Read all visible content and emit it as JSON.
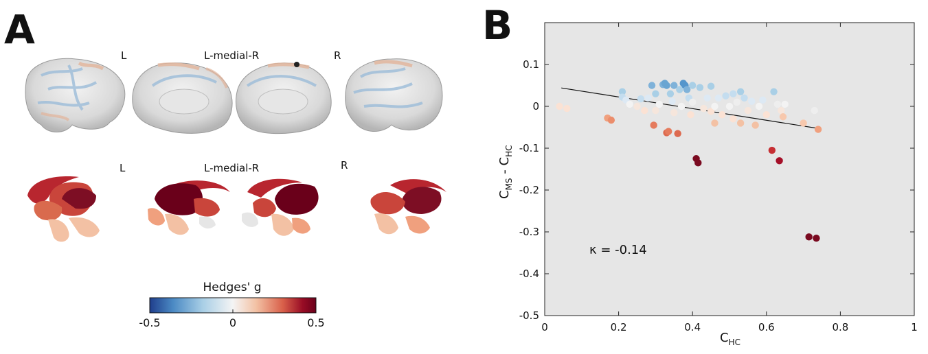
{
  "panel_a": {
    "letter": "A",
    "cortex_labels": [
      "L",
      "L-medial-R",
      "R"
    ],
    "subcortex_labels": [
      "L",
      "L-medial-R",
      "R"
    ],
    "colorbar": {
      "title": "Hedges' g",
      "ticks": [
        "-0.5",
        "0",
        "0.5"
      ],
      "min": -0.5,
      "max": 0.5,
      "colors": [
        "#1f3e8c",
        "#4b8ac4",
        "#a9cfe6",
        "#f4f4f4",
        "#f3c1a4",
        "#d9604a",
        "#980c25",
        "#6a001a"
      ]
    }
  },
  "panel_b": {
    "letter": "B"
  },
  "chart_data": {
    "type": "scatter",
    "xlabel": "C_HC",
    "ylabel": "C_MS - C_HC",
    "xlim": [
      0,
      1
    ],
    "ylim": [
      -0.5,
      0.2
    ],
    "xticks": [
      "0",
      "0.2",
      "0.4",
      "0.6",
      "0.8",
      "1"
    ],
    "yticks": [
      "0.1",
      "0",
      "-0.1",
      "-0.2",
      "-0.3",
      "-0.4",
      "-0.5"
    ],
    "background": "#e6e6e6",
    "grid": false,
    "annotation": "κ = -0.14",
    "fit_line": {
      "x": [
        0.045,
        0.735
      ],
      "y": [
        0.044,
        -0.052
      ]
    },
    "points": [
      {
        "x": 0.04,
        "y": 0.0,
        "color": "#fbe2d4"
      },
      {
        "x": 0.06,
        "y": -0.005,
        "color": "#fbe2d4"
      },
      {
        "x": 0.17,
        "y": -0.028,
        "color": "#f0a07e"
      },
      {
        "x": 0.18,
        "y": -0.033,
        "color": "#eb8d6c"
      },
      {
        "x": 0.21,
        "y": 0.035,
        "color": "#a9cfe6"
      },
      {
        "x": 0.21,
        "y": 0.022,
        "color": "#c4ddef"
      },
      {
        "x": 0.22,
        "y": 0.015,
        "color": "#dde9f4"
      },
      {
        "x": 0.23,
        "y": 0.005,
        "color": "#f3f3f3"
      },
      {
        "x": 0.25,
        "y": 0.0,
        "color": "#f6e6dc"
      },
      {
        "x": 0.26,
        "y": 0.018,
        "color": "#c4ddef"
      },
      {
        "x": 0.27,
        "y": -0.01,
        "color": "#fbe2d4"
      },
      {
        "x": 0.28,
        "y": 0.02,
        "color": "#dde9f4"
      },
      {
        "x": 0.29,
        "y": 0.05,
        "color": "#7fb2d9"
      },
      {
        "x": 0.295,
        "y": -0.045,
        "color": "#e57b5d"
      },
      {
        "x": 0.3,
        "y": -0.01,
        "color": "#f6e6dc"
      },
      {
        "x": 0.3,
        "y": 0.03,
        "color": "#a9cfe6"
      },
      {
        "x": 0.31,
        "y": 0.005,
        "color": "#f3f3f3"
      },
      {
        "x": 0.32,
        "y": 0.052,
        "color": "#7fb2d9"
      },
      {
        "x": 0.325,
        "y": 0.055,
        "color": "#6aa5d2"
      },
      {
        "x": 0.33,
        "y": 0.05,
        "color": "#6aa5d2"
      },
      {
        "x": 0.33,
        "y": -0.063,
        "color": "#dd6a4f"
      },
      {
        "x": 0.335,
        "y": -0.06,
        "color": "#e57b5d"
      },
      {
        "x": 0.34,
        "y": 0.03,
        "color": "#a9cfe6"
      },
      {
        "x": 0.345,
        "y": 0.012,
        "color": "#dde9f4"
      },
      {
        "x": 0.35,
        "y": 0.05,
        "color": "#7fb2d9"
      },
      {
        "x": 0.35,
        "y": -0.015,
        "color": "#f6e6dc"
      },
      {
        "x": 0.36,
        "y": -0.065,
        "color": "#dd6a4f"
      },
      {
        "x": 0.365,
        "y": 0.04,
        "color": "#a9cfe6"
      },
      {
        "x": 0.37,
        "y": 0.0,
        "color": "#f3f3f3"
      },
      {
        "x": 0.375,
        "y": 0.055,
        "color": "#5596cc"
      },
      {
        "x": 0.38,
        "y": 0.05,
        "color": "#5596cc"
      },
      {
        "x": 0.385,
        "y": 0.04,
        "color": "#7fb2d9"
      },
      {
        "x": 0.39,
        "y": 0.02,
        "color": "#c4ddef"
      },
      {
        "x": 0.395,
        "y": -0.02,
        "color": "#fbe2d4"
      },
      {
        "x": 0.4,
        "y": 0.05,
        "color": "#a9cfe6"
      },
      {
        "x": 0.4,
        "y": 0.01,
        "color": "#eeeeee"
      },
      {
        "x": 0.41,
        "y": -0.125,
        "color": "#7a0a20"
      },
      {
        "x": 0.415,
        "y": -0.135,
        "color": "#7a0a20"
      },
      {
        "x": 0.42,
        "y": 0.045,
        "color": "#a9cfe6"
      },
      {
        "x": 0.43,
        "y": -0.005,
        "color": "#f6e6dc"
      },
      {
        "x": 0.44,
        "y": 0.02,
        "color": "#dde9f4"
      },
      {
        "x": 0.45,
        "y": 0.048,
        "color": "#a9cfe6"
      },
      {
        "x": 0.45,
        "y": -0.012,
        "color": "#fbe2d4"
      },
      {
        "x": 0.46,
        "y": 0.0,
        "color": "#f3f3f3"
      },
      {
        "x": 0.46,
        "y": -0.04,
        "color": "#f3c1a4"
      },
      {
        "x": 0.47,
        "y": 0.02,
        "color": "#dde9f4"
      },
      {
        "x": 0.48,
        "y": -0.02,
        "color": "#fbe2d4"
      },
      {
        "x": 0.49,
        "y": 0.025,
        "color": "#c4ddef"
      },
      {
        "x": 0.5,
        "y": 0.0,
        "color": "#f3f3f3"
      },
      {
        "x": 0.51,
        "y": 0.03,
        "color": "#c4ddef"
      },
      {
        "x": 0.51,
        "y": -0.03,
        "color": "#fbe2d4"
      },
      {
        "x": 0.52,
        "y": 0.01,
        "color": "#eeeeee"
      },
      {
        "x": 0.53,
        "y": 0.035,
        "color": "#a9cfe6"
      },
      {
        "x": 0.53,
        "y": -0.04,
        "color": "#f3c1a4"
      },
      {
        "x": 0.54,
        "y": 0.02,
        "color": "#c4ddef"
      },
      {
        "x": 0.55,
        "y": -0.01,
        "color": "#f6e6dc"
      },
      {
        "x": 0.56,
        "y": 0.012,
        "color": "#dde9f4"
      },
      {
        "x": 0.57,
        "y": -0.045,
        "color": "#f3c1a4"
      },
      {
        "x": 0.58,
        "y": 0.0,
        "color": "#f3f3f3"
      },
      {
        "x": 0.59,
        "y": 0.015,
        "color": "#dde9f4"
      },
      {
        "x": 0.6,
        "y": -0.02,
        "color": "#fbe2d4"
      },
      {
        "x": 0.615,
        "y": -0.105,
        "color": "#c62f33"
      },
      {
        "x": 0.62,
        "y": 0.035,
        "color": "#a9cfe6"
      },
      {
        "x": 0.63,
        "y": 0.005,
        "color": "#eeeeee"
      },
      {
        "x": 0.635,
        "y": -0.13,
        "color": "#a50f28"
      },
      {
        "x": 0.64,
        "y": -0.01,
        "color": "#f6e6dc"
      },
      {
        "x": 0.645,
        "y": -0.025,
        "color": "#f7c8ad"
      },
      {
        "x": 0.65,
        "y": 0.005,
        "color": "#f3f3f3"
      },
      {
        "x": 0.7,
        "y": -0.04,
        "color": "#f7c8ad"
      },
      {
        "x": 0.715,
        "y": -0.312,
        "color": "#7a0a20"
      },
      {
        "x": 0.73,
        "y": -0.01,
        "color": "#eeeeee"
      },
      {
        "x": 0.735,
        "y": -0.315,
        "color": "#7a0a20"
      },
      {
        "x": 0.74,
        "y": -0.055,
        "color": "#f0a07e"
      }
    ]
  }
}
